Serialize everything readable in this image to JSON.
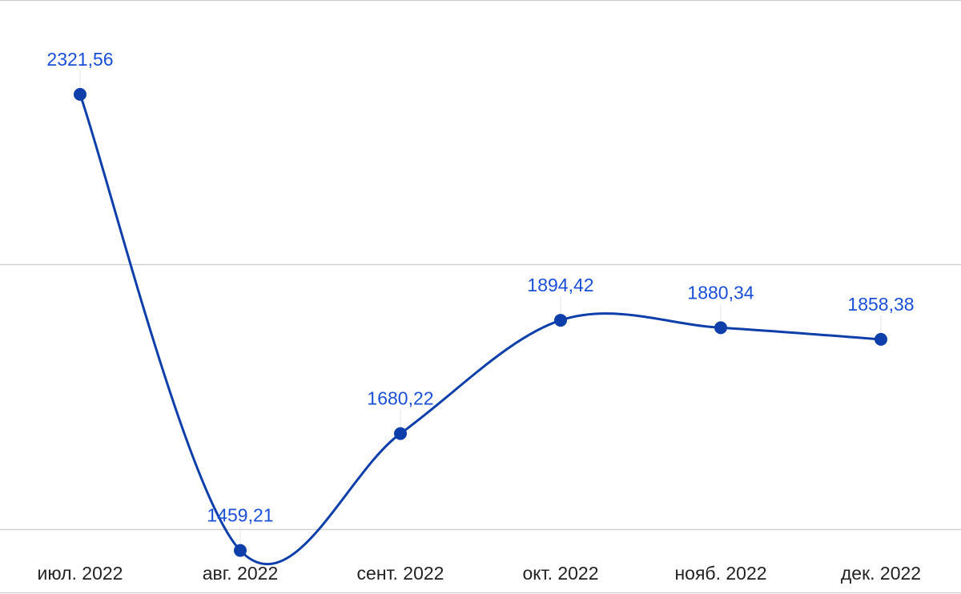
{
  "chart_data": {
    "type": "line",
    "categories": [
      "июл. 2022",
      "авг. 2022",
      "сент. 2022",
      "окт. 2022",
      "нояб. 2022",
      "дек. 2022"
    ],
    "series": [
      {
        "values": [
          2321.56,
          1459.21,
          1680.22,
          1894.42,
          1880.34,
          1858.38
        ]
      }
    ],
    "data_labels": [
      "2321,56",
      "1459,21",
      "1680,22",
      "1894,42",
      "1880,34",
      "1858,38"
    ],
    "title": "",
    "xlabel": "",
    "ylabel": "",
    "ylim": [
      1000,
      2500
    ],
    "gridlines": [
      1500,
      2000,
      2500
    ],
    "grid": true,
    "legend": "none",
    "colors": {
      "line": "#0d3eaa",
      "marker": "#0d3eaa",
      "label": "#1a4fd6",
      "grid": "#cccccc",
      "axis_text": "#222222"
    }
  }
}
